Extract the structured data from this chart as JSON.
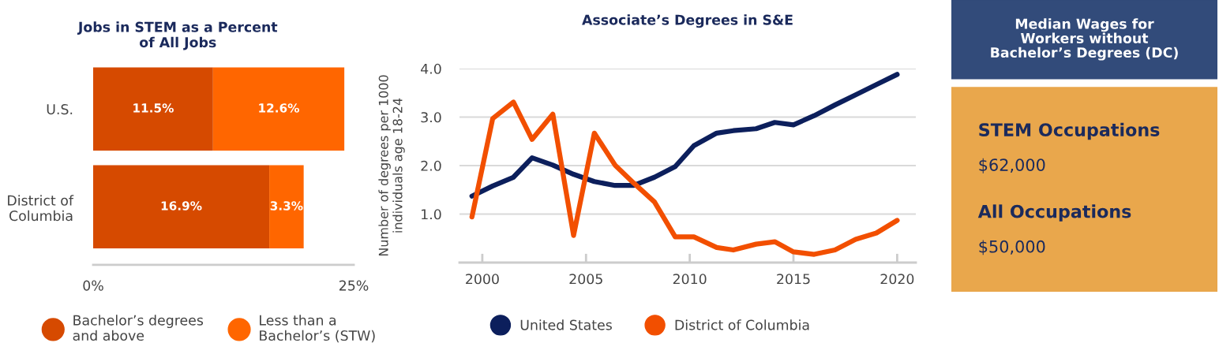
{
  "chart_data": [
    {
      "type": "bar",
      "title": "Jobs in STEM as a Percent of All Jobs",
      "orientation": "horizontal",
      "stacked": true,
      "categories": [
        "U.S.",
        "District of Columbia"
      ],
      "series": [
        {
          "name": "Bachelor’s degrees and above",
          "color": "#d64a00",
          "values": [
            11.5,
            16.9
          ],
          "value_labels": [
            "11.5%",
            "16.9%"
          ]
        },
        {
          "name": "Less than a Bachelor’s (STW)",
          "color": "#ff6600",
          "values": [
            12.6,
            3.3
          ],
          "value_labels": [
            "12.6%",
            "3.3%"
          ]
        }
      ],
      "xlim": [
        0,
        25
      ],
      "xticks": [
        {
          "value": 0,
          "label": "0%"
        },
        {
          "value": 25,
          "label": "25%"
        }
      ],
      "grid": false,
      "legend": "bottom"
    },
    {
      "type": "line",
      "title": "Associate’s Degrees in S&E",
      "ylabel": "Number of degrees per 1000 individuals age 18-24",
      "x": [
        1999.5,
        2000.5,
        2001.5,
        2002.4,
        2003.4,
        2004.4,
        2005.4,
        2006.4,
        2007.3,
        2008.3,
        2009.3,
        2010.2,
        2011.3,
        2012.1,
        2013.2,
        2014.1,
        2015.0,
        2016.0,
        2017.0,
        2018.0,
        2019.0,
        2020.0
      ],
      "series": [
        {
          "name": "United States",
          "color": "#0c1f5c",
          "values": [
            1.37,
            1.58,
            1.76,
            2.16,
            2.01,
            1.82,
            1.67,
            1.59,
            1.59,
            1.76,
            1.98,
            2.41,
            2.67,
            2.72,
            2.76,
            2.89,
            2.84,
            3.03,
            3.25,
            3.46,
            3.67,
            3.88
          ]
        },
        {
          "name": "District of Columbia",
          "color": "#f24f00",
          "values": [
            0.94,
            2.97,
            3.31,
            2.54,
            3.06,
            0.56,
            2.67,
            2.01,
            1.64,
            1.25,
            0.53,
            0.53,
            0.31,
            0.26,
            0.38,
            0.43,
            0.22,
            0.17,
            0.26,
            0.48,
            0.61,
            0.87
          ]
        }
      ],
      "xlim": [
        1998.9,
        2020.9
      ],
      "xticks": [
        2000,
        2005,
        2010,
        2015,
        2020
      ],
      "ylim": [
        0,
        4.0
      ],
      "yticks": [
        {
          "value": 1,
          "label": "1.0"
        },
        {
          "value": 2,
          "label": "2.0"
        },
        {
          "value": 3,
          "label": "3.0"
        },
        {
          "value": 4,
          "label": "4.0"
        }
      ],
      "grid": "y",
      "legend": "bottom",
      "marker": "none",
      "line_style": "solid"
    },
    {
      "type": "other",
      "title": "Median Wages for Workers without Bachelor’s Degrees (DC)",
      "annotations": [
        "STEM Occupations",
        "$62,000",
        "All Occupations",
        "$50,000"
      ]
    }
  ]
}
